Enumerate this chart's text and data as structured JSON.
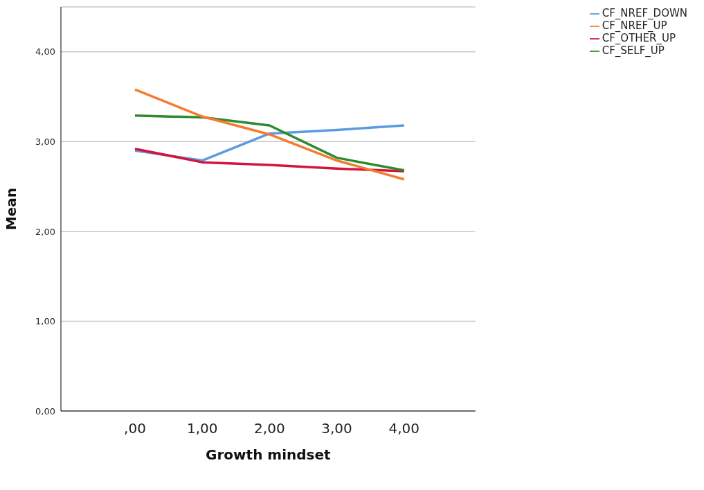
{
  "chart_data": {
    "type": "line",
    "xlabel": "Growth mindset",
    "ylabel": "Mean",
    "categories": [
      ",00",
      "1,00",
      "2,00",
      "3,00",
      "4,00"
    ],
    "series": [
      {
        "name": "CF_NREF_DOWN",
        "color": "#5b9be0",
        "values": [
          2.9,
          2.79,
          3.09,
          3.13,
          3.18
        ]
      },
      {
        "name": "CF_OTHER_UP",
        "color": "#d5143c",
        "values": [
          2.92,
          2.77,
          2.74,
          2.7,
          2.67
        ]
      },
      {
        "name": "CF_SELF_UP",
        "color": "#2f8a2f",
        "values": [
          3.29,
          3.27,
          3.18,
          2.82,
          2.68
        ]
      },
      {
        "name": "CF_NREF_UP",
        "color": "#f57b30",
        "values": [
          3.58,
          3.28,
          3.08,
          2.79,
          2.58
        ]
      }
    ],
    "ylim": [
      0,
      4.5
    ],
    "yticks": [
      {
        "value": 0,
        "label": "0,00"
      },
      {
        "value": 1,
        "label": "1,00"
      },
      {
        "value": 2,
        "label": "2,00"
      },
      {
        "value": 3,
        "label": "3,00"
      },
      {
        "value": 4,
        "label": "4,00"
      }
    ],
    "grid": "y",
    "legend": "top right",
    "marker": "none",
    "line_style": "solid"
  }
}
